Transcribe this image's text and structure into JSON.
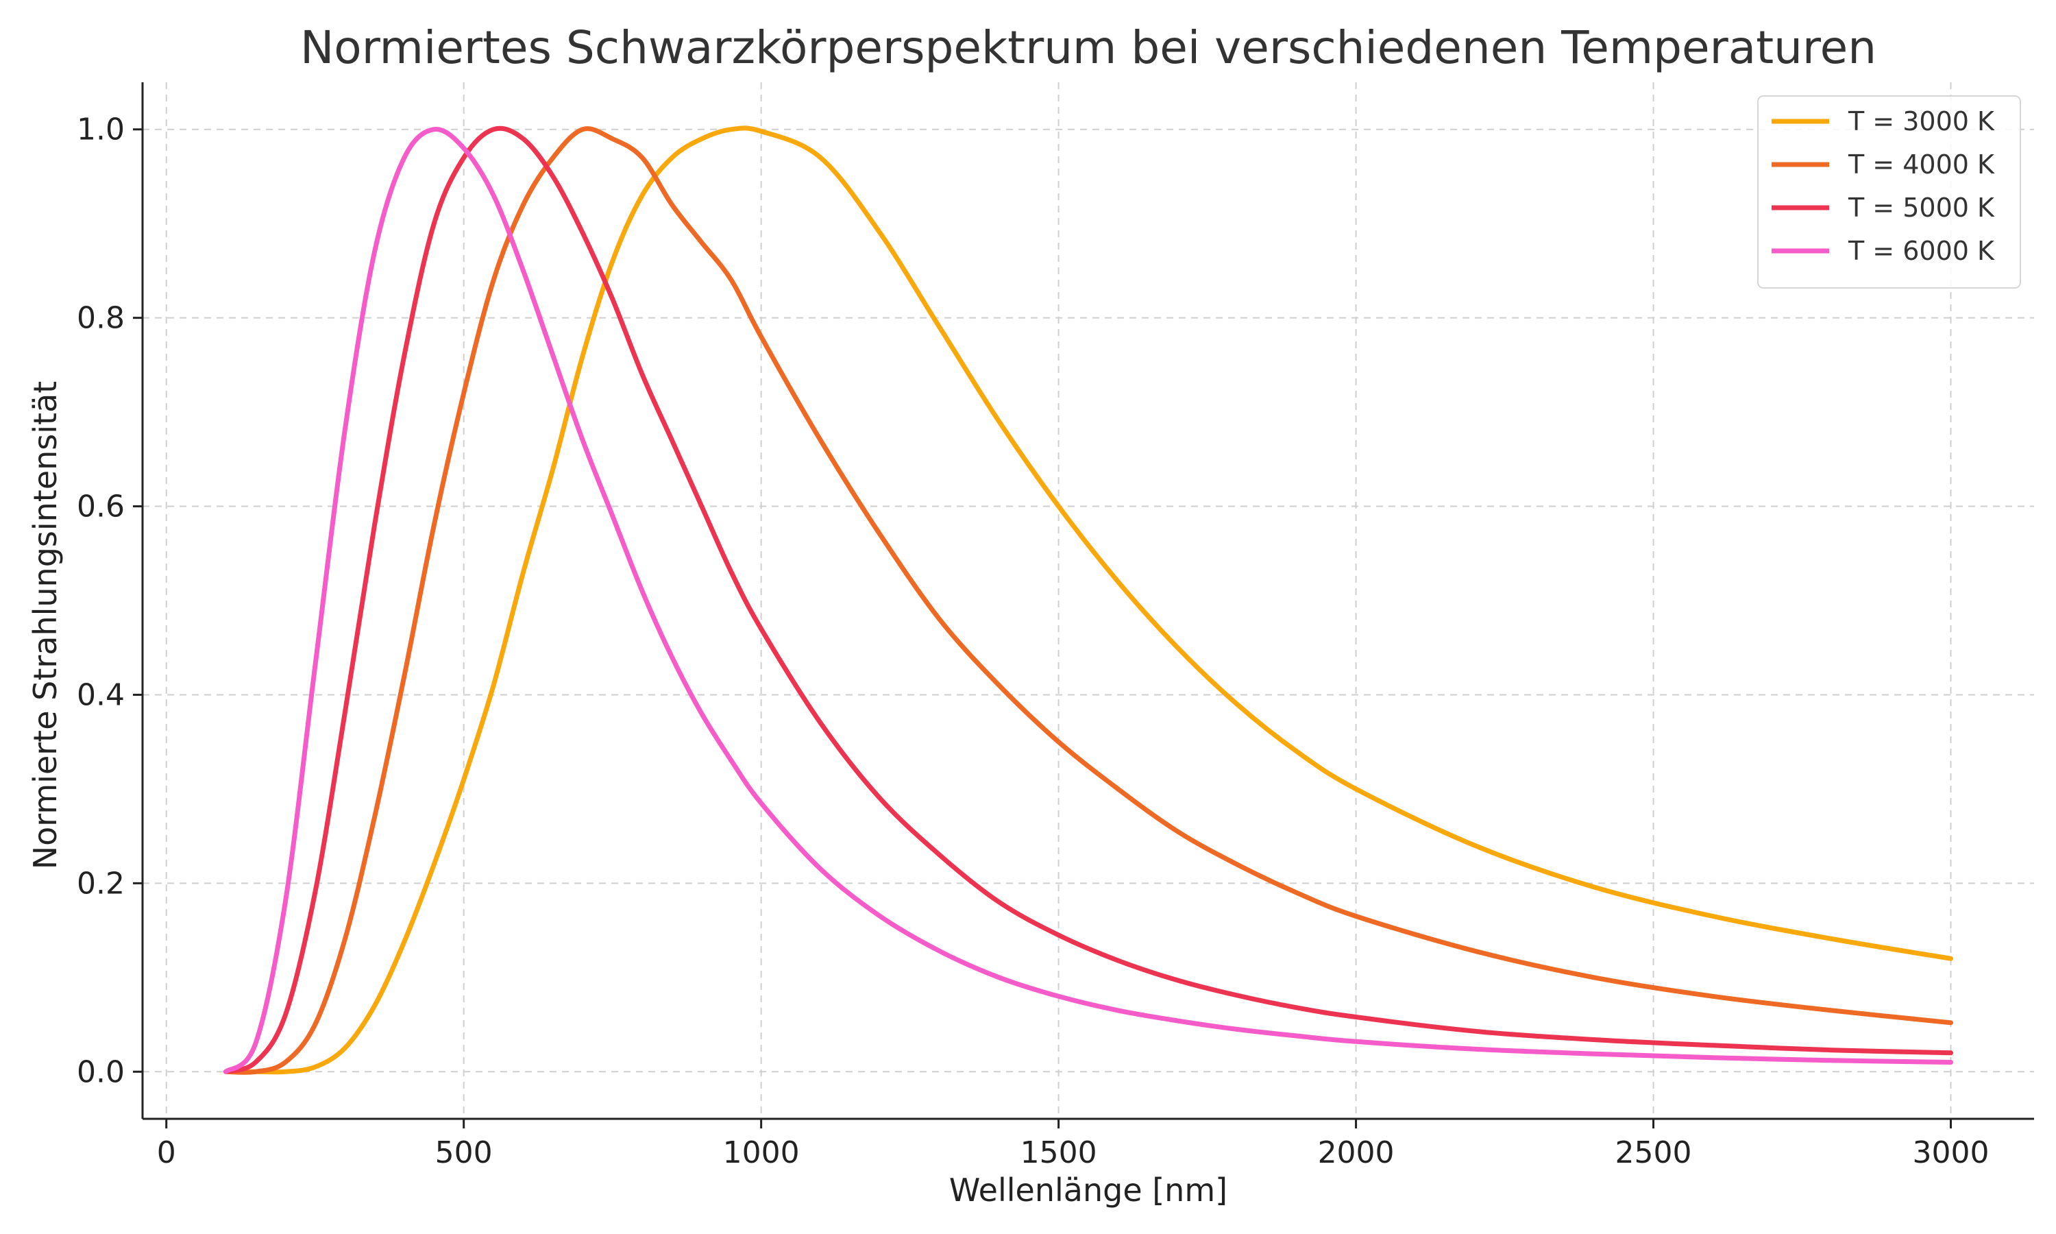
{
  "chart_data": {
    "type": "line",
    "title": "Normiertes Schwarzkörperspektrum bei verschiedenen Temperaturen",
    "xlabel": "Wellenlänge [nm]",
    "ylabel": "Normierte Strahlungsintensität",
    "xlim": [
      -40,
      3140
    ],
    "ylim": [
      -0.05,
      1.05
    ],
    "x_ticks": [
      0,
      500,
      1000,
      1500,
      2000,
      2500,
      3000
    ],
    "x_tick_labels": [
      "0",
      "500",
      "1000",
      "1500",
      "2000",
      "2500",
      "3000"
    ],
    "y_ticks": [
      0.0,
      0.2,
      0.4,
      0.6,
      0.8,
      1.0
    ],
    "y_tick_labels": [
      "0.0",
      "0.2",
      "0.4",
      "0.6",
      "0.8",
      "1.0"
    ],
    "grid": true,
    "legend_position": "top-right",
    "x": [
      100,
      150,
      200,
      250,
      300,
      350,
      400,
      450,
      500,
      550,
      600,
      650,
      700,
      750,
      800,
      850,
      900,
      950,
      1000,
      1100,
      1200,
      1300,
      1400,
      1500,
      1600,
      1700,
      1800,
      1900,
      2000,
      2200,
      2400,
      2600,
      2800,
      3000
    ],
    "series": [
      {
        "name": "T = 3000 K",
        "color": "#F9A80C",
        "values": [
          0.0,
          0.0,
          0.0,
          0.005,
          0.025,
          0.07,
          0.138,
          0.22,
          0.31,
          0.41,
          0.53,
          0.64,
          0.76,
          0.86,
          0.93,
          0.97,
          0.99,
          1.0,
          0.998,
          0.97,
          0.89,
          0.79,
          0.69,
          0.6,
          0.52,
          0.45,
          0.39,
          0.34,
          0.3,
          0.24,
          0.196,
          0.165,
          0.141,
          0.12
        ]
      },
      {
        "name": "T = 4000 K",
        "color": "#EE6A24",
        "values": [
          0.0,
          0.0,
          0.01,
          0.05,
          0.14,
          0.27,
          0.42,
          0.58,
          0.72,
          0.84,
          0.92,
          0.97,
          1.0,
          0.99,
          0.97,
          0.92,
          0.88,
          0.84,
          0.78,
          0.67,
          0.57,
          0.48,
          0.41,
          0.35,
          0.3,
          0.255,
          0.22,
          0.19,
          0.165,
          0.128,
          0.1,
          0.08,
          0.065,
          0.052
        ]
      },
      {
        "name": "T = 5000 K",
        "color": "#EC3450",
        "values": [
          0.0,
          0.01,
          0.06,
          0.19,
          0.38,
          0.58,
          0.76,
          0.9,
          0.97,
          1.0,
          0.99,
          0.95,
          0.89,
          0.82,
          0.74,
          0.67,
          0.6,
          0.53,
          0.47,
          0.37,
          0.29,
          0.23,
          0.18,
          0.145,
          0.118,
          0.097,
          0.081,
          0.068,
          0.058,
          0.043,
          0.034,
          0.028,
          0.023,
          0.02
        ]
      },
      {
        "name": "T = 6000 K",
        "color": "#F55BC9",
        "values": [
          0.0,
          0.03,
          0.18,
          0.43,
          0.68,
          0.87,
          0.97,
          1.0,
          0.98,
          0.93,
          0.85,
          0.76,
          0.67,
          0.59,
          0.51,
          0.44,
          0.38,
          0.33,
          0.285,
          0.215,
          0.165,
          0.128,
          0.1,
          0.08,
          0.065,
          0.054,
          0.045,
          0.038,
          0.032,
          0.024,
          0.019,
          0.015,
          0.012,
          0.01
        ]
      }
    ]
  }
}
